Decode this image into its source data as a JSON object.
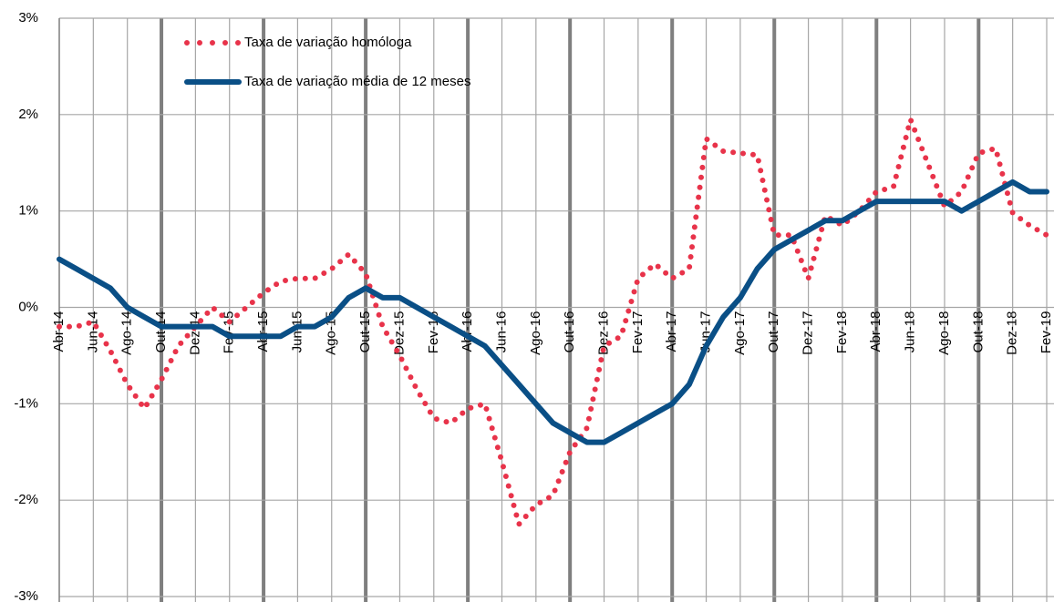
{
  "chart_data": {
    "type": "line",
    "categories": [
      "Abr-14",
      null,
      "Jun-14",
      null,
      "Ago-14",
      null,
      "Out-14",
      null,
      "Dez-14",
      null,
      "Fev-15",
      null,
      "Abr-15",
      null,
      "Jun-15",
      null,
      "Ago-15",
      null,
      "Out-15",
      null,
      "Dez-15",
      null,
      "Fev-16",
      null,
      "Abr-16",
      null,
      "Jun-16",
      null,
      "Ago-16",
      null,
      "Out-16",
      null,
      "Dez-16",
      null,
      "Fev-17",
      null,
      "Abr-17",
      null,
      "Jun-17",
      null,
      "Ago-17",
      null,
      "Out-17",
      null,
      "Dez-17",
      null,
      "Fev-18",
      null,
      "Abr-18",
      null,
      "Jun-18",
      null,
      "Ago-18",
      null,
      "Out-18",
      null,
      "Dez-18",
      null,
      "Fev-19"
    ],
    "series": [
      {
        "name": "Taxa de variação homóloga",
        "color": "#e8334a",
        "style": "dotted",
        "values": [
          -0.2,
          -0.2,
          -0.15,
          -0.45,
          -0.8,
          -1.05,
          -0.75,
          -0.4,
          -0.2,
          0.0,
          -0.15,
          0.0,
          0.15,
          0.27,
          0.3,
          0.3,
          0.4,
          0.55,
          0.35,
          -0.2,
          -0.5,
          -0.85,
          -1.15,
          -1.2,
          -1.05,
          -1.0,
          -1.6,
          -2.25,
          -2.05,
          -1.95,
          -1.5,
          -1.25,
          -0.4,
          -0.3,
          0.3,
          0.45,
          0.3,
          0.4,
          1.75,
          1.62,
          1.6,
          1.58,
          0.75,
          0.75,
          0.3,
          0.95,
          0.85,
          1.0,
          1.2,
          1.25,
          1.95,
          1.5,
          1.05,
          1.2,
          1.6,
          1.65,
          0.98,
          0.85,
          0.75
        ]
      },
      {
        "name": "Taxa de variação média de 12 meses",
        "color": "#0a4f86",
        "style": "solid",
        "values": [
          0.5,
          0.4,
          0.3,
          0.2,
          0.0,
          -0.1,
          -0.2,
          -0.2,
          -0.2,
          -0.2,
          -0.3,
          -0.3,
          -0.3,
          -0.3,
          -0.2,
          -0.2,
          -0.1,
          0.1,
          0.2,
          0.1,
          0.1,
          0.0,
          -0.1,
          -0.2,
          -0.3,
          -0.4,
          -0.6,
          -0.8,
          -1.0,
          -1.2,
          -1.3,
          -1.4,
          -1.4,
          -1.3,
          -1.2,
          -1.1,
          -1.0,
          -0.8,
          -0.4,
          -0.1,
          0.1,
          0.4,
          0.6,
          0.7,
          0.8,
          0.9,
          0.9,
          1.0,
          1.1,
          1.1,
          1.1,
          1.1,
          1.1,
          1.0,
          1.1,
          1.2,
          1.3,
          1.2,
          1.2
        ]
      }
    ],
    "ylim": [
      -3,
      3
    ],
    "yticks": [
      {
        "value": -3,
        "label": "-3%"
      },
      {
        "value": -2,
        "label": "-2%"
      },
      {
        "value": -1,
        "label": "-1%"
      },
      {
        "value": 0,
        "label": "0%"
      },
      {
        "value": 1,
        "label": "1%"
      },
      {
        "value": 2,
        "label": "2%"
      },
      {
        "value": 3,
        "label": "3%"
      }
    ],
    "grid": true,
    "legend": "top-left"
  }
}
